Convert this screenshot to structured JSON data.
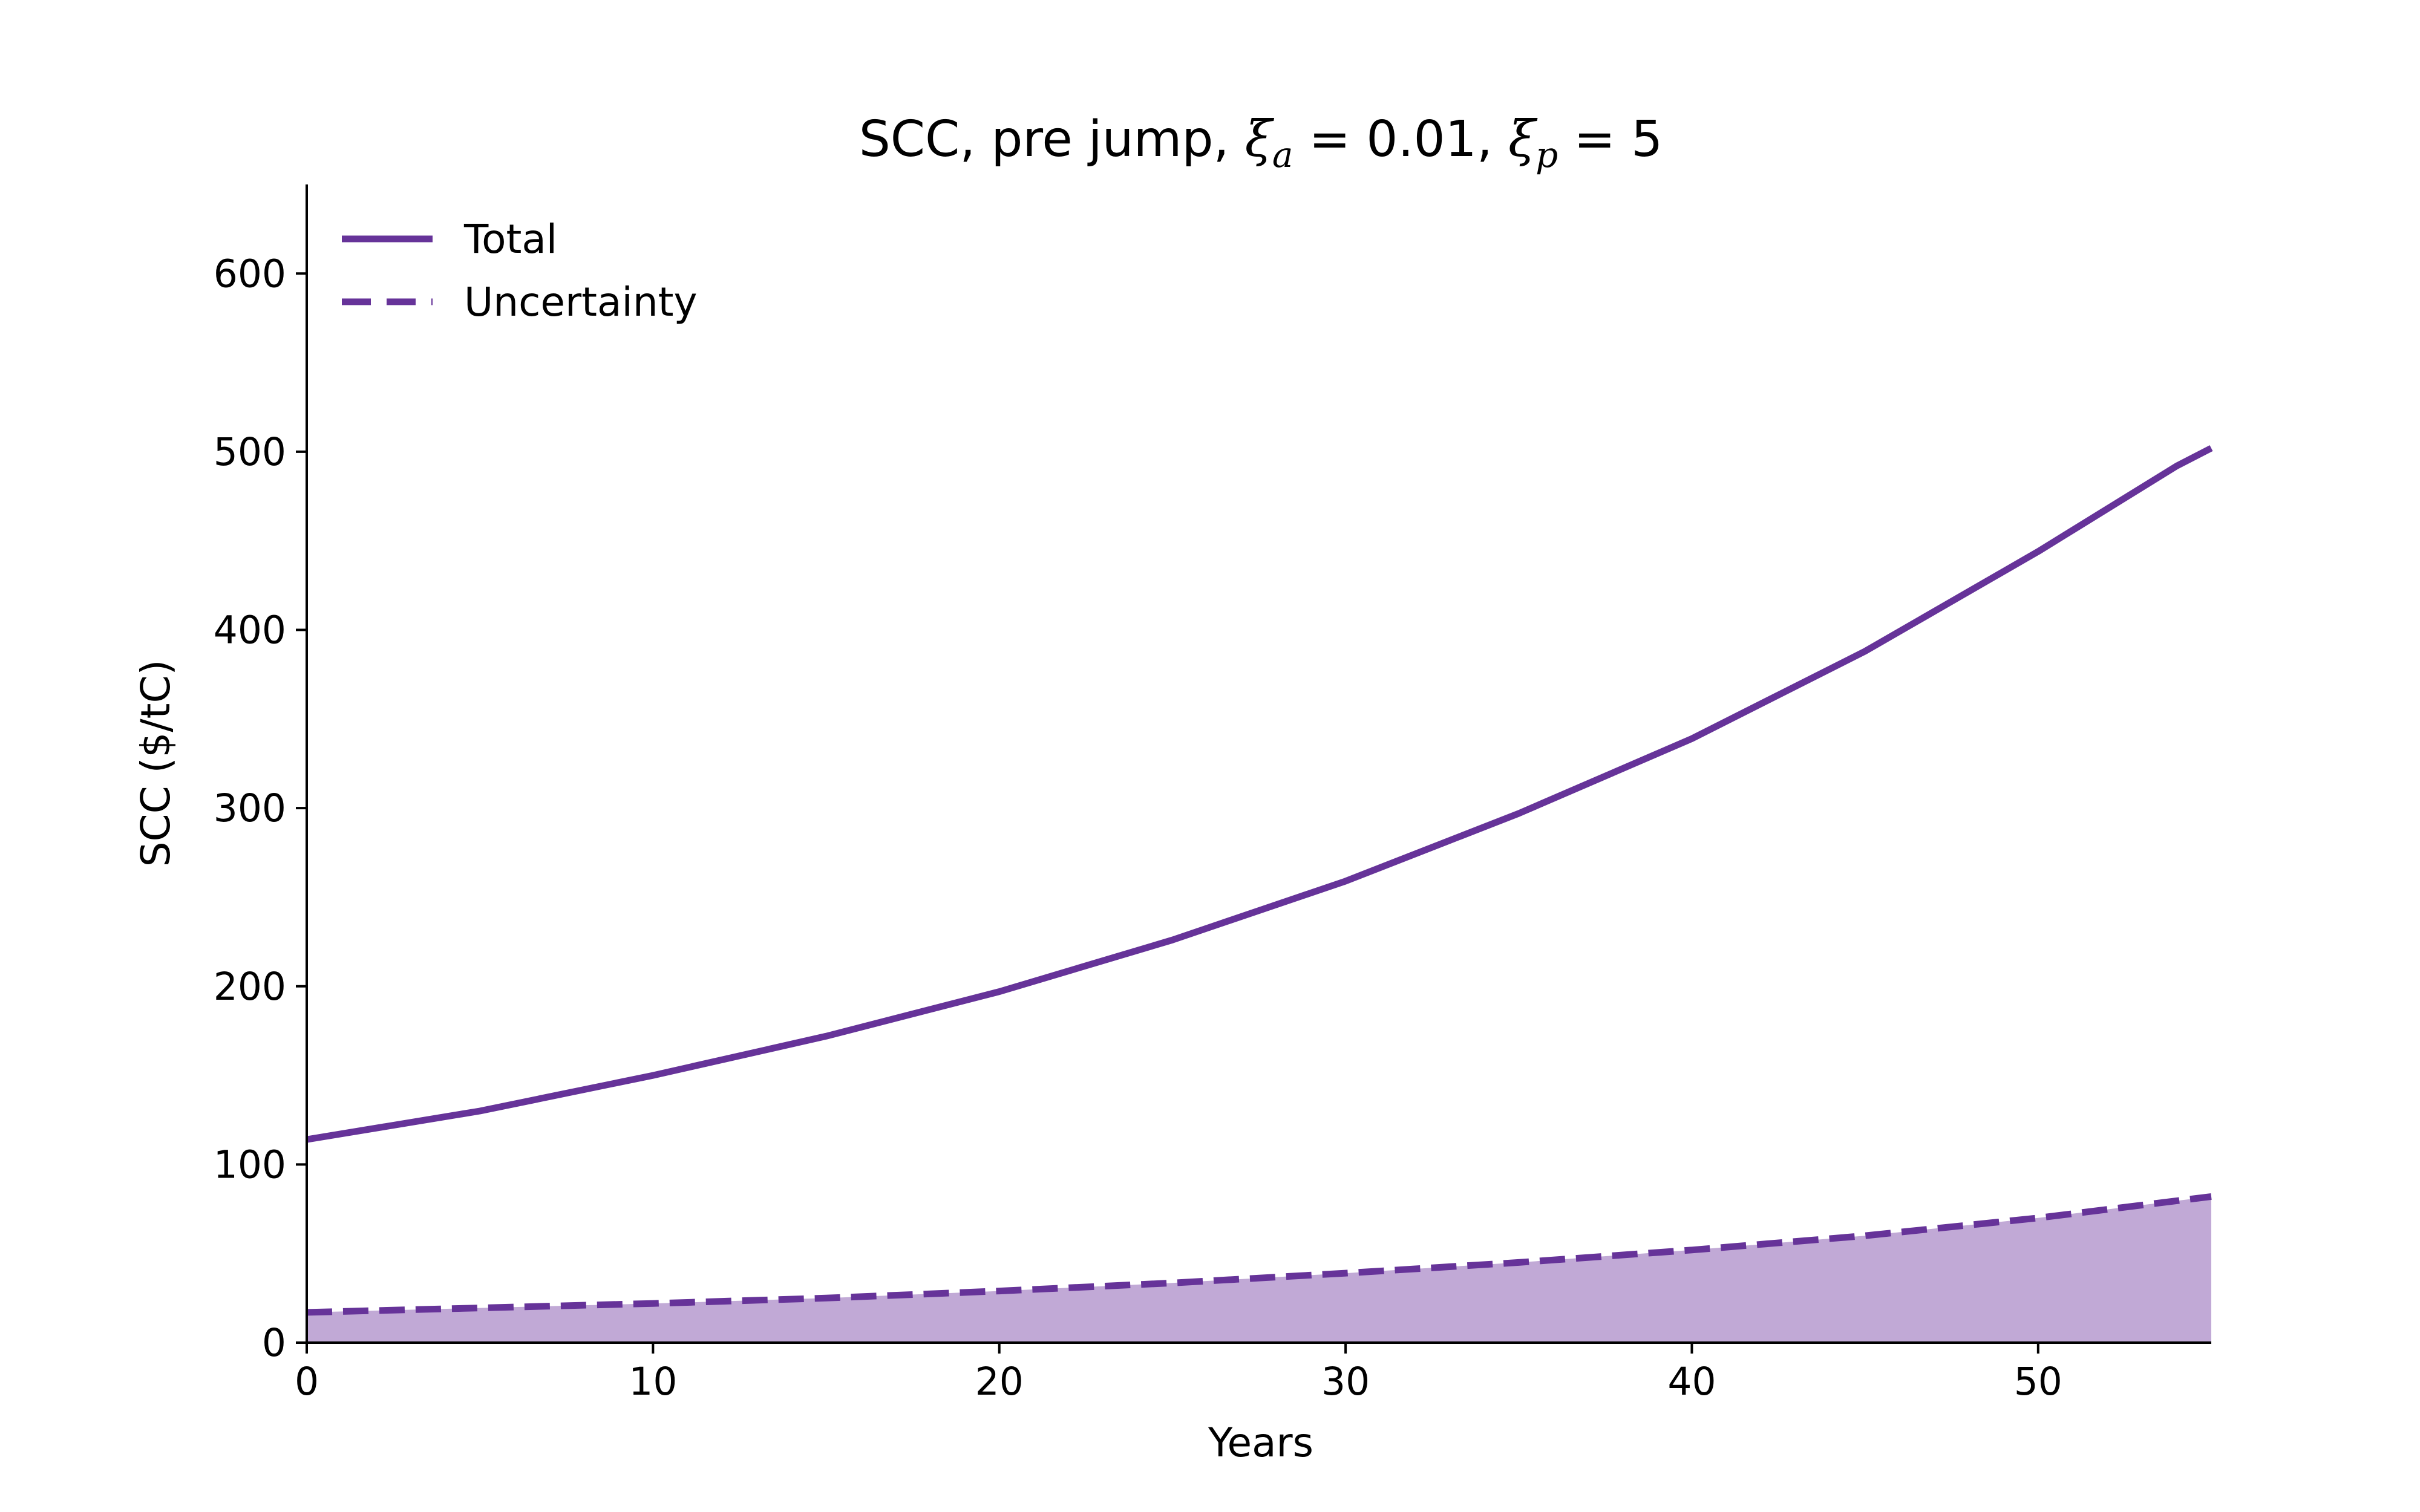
{
  "chart_data": {
    "type": "line",
    "title": {
      "prefix": "SCC, pre jump, ",
      "sym_a": "ξ",
      "sub_a": "a",
      "eq_a": " = 0.01, ",
      "sym_p": "ξ",
      "sub_p": "p",
      "eq_p": " = 5"
    },
    "xlabel": "Years",
    "ylabel": "SCC ($/tC)",
    "xlim": [
      0,
      55
    ],
    "ylim": [
      0,
      650
    ],
    "xticks": [
      0,
      10,
      20,
      30,
      40,
      50
    ],
    "yticks": [
      0,
      100,
      200,
      300,
      400,
      500,
      600
    ],
    "grid": false,
    "legend_position": "top-left",
    "color": "#663399",
    "fill_color": "#c1a9d6",
    "series": [
      {
        "name": "Total",
        "style": "solid",
        "x": [
          0,
          5,
          10,
          15,
          20,
          25,
          30,
          35,
          40,
          45,
          50,
          54,
          55
        ],
        "y": [
          114,
          130,
          150,
          172,
          197,
          226,
          259,
          297,
          339,
          388,
          444,
          492,
          502
        ]
      },
      {
        "name": "Uncertainty",
        "style": "dashed",
        "fill_below": true,
        "x": [
          0,
          5,
          10,
          15,
          20,
          25,
          30,
          35,
          40,
          45,
          50,
          55
        ],
        "y": [
          17,
          19.5,
          22,
          25,
          29,
          33.5,
          39,
          45,
          52,
          60,
          70,
          82
        ]
      }
    ]
  }
}
